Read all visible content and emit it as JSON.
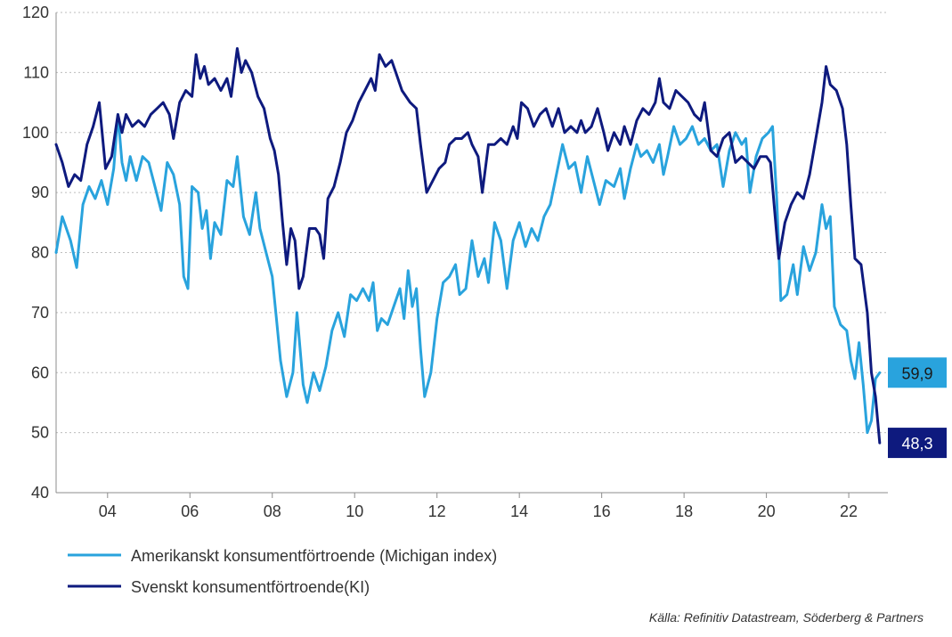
{
  "chart_data": {
    "type": "line",
    "title": "",
    "xlabel": "",
    "ylabel": "",
    "xlim": [
      2002.75,
      2022.95
    ],
    "ylim": [
      40,
      120
    ],
    "yticks": [
      "40",
      "50",
      "60",
      "70",
      "80",
      "90",
      "100",
      "110",
      "120"
    ],
    "xticks": [
      {
        "label": "04",
        "x": 2004.0
      },
      {
        "label": "06",
        "x": 2006.0
      },
      {
        "label": "08",
        "x": 2008.0
      },
      {
        "label": "10",
        "x": 2010.0
      },
      {
        "label": "12",
        "x": 2012.0
      },
      {
        "label": "14",
        "x": 2014.0
      },
      {
        "label": "16",
        "x": 2016.0
      },
      {
        "label": "18",
        "x": 2018.0
      },
      {
        "label": "20",
        "x": 2020.0
      },
      {
        "label": "22",
        "x": 2022.0
      }
    ],
    "grid": true,
    "series": [
      {
        "name": "Amerikanskt konsumentförtroende (Michigan index)",
        "color": "#29A3DD",
        "end_label": "59,9",
        "points": [
          [
            2002.75,
            80
          ],
          [
            2002.9,
            86
          ],
          [
            2003.1,
            82
          ],
          [
            2003.25,
            77.5
          ],
          [
            2003.4,
            88
          ],
          [
            2003.55,
            91
          ],
          [
            2003.7,
            89
          ],
          [
            2003.85,
            92
          ],
          [
            2004.0,
            88
          ],
          [
            2004.15,
            94
          ],
          [
            2004.25,
            103
          ],
          [
            2004.35,
            95
          ],
          [
            2004.45,
            92
          ],
          [
            2004.55,
            96
          ],
          [
            2004.7,
            92
          ],
          [
            2004.85,
            96
          ],
          [
            2005.0,
            95
          ],
          [
            2005.15,
            91
          ],
          [
            2005.3,
            87
          ],
          [
            2005.45,
            95
          ],
          [
            2005.6,
            93
          ],
          [
            2005.75,
            88
          ],
          [
            2005.85,
            76
          ],
          [
            2005.95,
            74
          ],
          [
            2006.05,
            91
          ],
          [
            2006.2,
            90
          ],
          [
            2006.3,
            84
          ],
          [
            2006.4,
            87
          ],
          [
            2006.5,
            79
          ],
          [
            2006.6,
            85
          ],
          [
            2006.75,
            83
          ],
          [
            2006.9,
            92
          ],
          [
            2007.05,
            91
          ],
          [
            2007.15,
            96
          ],
          [
            2007.3,
            86
          ],
          [
            2007.45,
            83
          ],
          [
            2007.6,
            90
          ],
          [
            2007.7,
            84
          ],
          [
            2007.85,
            80
          ],
          [
            2008.0,
            76
          ],
          [
            2008.1,
            69
          ],
          [
            2008.2,
            62
          ],
          [
            2008.35,
            56
          ],
          [
            2008.5,
            60
          ],
          [
            2008.6,
            70
          ],
          [
            2008.75,
            58
          ],
          [
            2008.85,
            55
          ],
          [
            2009.0,
            60
          ],
          [
            2009.15,
            57
          ],
          [
            2009.3,
            61
          ],
          [
            2009.45,
            67
          ],
          [
            2009.6,
            70
          ],
          [
            2009.75,
            66
          ],
          [
            2009.9,
            73
          ],
          [
            2010.05,
            72
          ],
          [
            2010.2,
            74
          ],
          [
            2010.35,
            72
          ],
          [
            2010.45,
            75
          ],
          [
            2010.55,
            67
          ],
          [
            2010.65,
            69
          ],
          [
            2010.8,
            68
          ],
          [
            2010.95,
            71
          ],
          [
            2011.1,
            74
          ],
          [
            2011.2,
            69
          ],
          [
            2011.3,
            77
          ],
          [
            2011.4,
            71
          ],
          [
            2011.5,
            74
          ],
          [
            2011.6,
            64
          ],
          [
            2011.7,
            56
          ],
          [
            2011.85,
            60
          ],
          [
            2012.0,
            69
          ],
          [
            2012.15,
            75
          ],
          [
            2012.3,
            76
          ],
          [
            2012.45,
            78
          ],
          [
            2012.55,
            73
          ],
          [
            2012.7,
            74
          ],
          [
            2012.85,
            82
          ],
          [
            2013.0,
            76
          ],
          [
            2013.15,
            79
          ],
          [
            2013.25,
            75
          ],
          [
            2013.4,
            85
          ],
          [
            2013.55,
            82
          ],
          [
            2013.7,
            74
          ],
          [
            2013.85,
            82
          ],
          [
            2014.0,
            85
          ],
          [
            2014.15,
            81
          ],
          [
            2014.3,
            84
          ],
          [
            2014.45,
            82
          ],
          [
            2014.6,
            86
          ],
          [
            2014.75,
            88
          ],
          [
            2014.9,
            93
          ],
          [
            2015.05,
            98
          ],
          [
            2015.2,
            94
          ],
          [
            2015.35,
            95
          ],
          [
            2015.5,
            90
          ],
          [
            2015.65,
            96
          ],
          [
            2015.8,
            92
          ],
          [
            2015.95,
            88
          ],
          [
            2016.1,
            92
          ],
          [
            2016.3,
            91
          ],
          [
            2016.45,
            94
          ],
          [
            2016.55,
            89
          ],
          [
            2016.7,
            94
          ],
          [
            2016.85,
            98
          ],
          [
            2016.95,
            96
          ],
          [
            2017.1,
            97
          ],
          [
            2017.25,
            95
          ],
          [
            2017.4,
            98
          ],
          [
            2017.5,
            93
          ],
          [
            2017.6,
            96
          ],
          [
            2017.75,
            101
          ],
          [
            2017.9,
            98
          ],
          [
            2018.05,
            99
          ],
          [
            2018.2,
            101
          ],
          [
            2018.35,
            98
          ],
          [
            2018.5,
            99
          ],
          [
            2018.65,
            97
          ],
          [
            2018.8,
            98
          ],
          [
            2018.95,
            91
          ],
          [
            2019.1,
            97
          ],
          [
            2019.25,
            100
          ],
          [
            2019.4,
            98
          ],
          [
            2019.5,
            99
          ],
          [
            2019.6,
            90
          ],
          [
            2019.75,
            96
          ],
          [
            2019.9,
            99
          ],
          [
            2020.05,
            100
          ],
          [
            2020.15,
            101
          ],
          [
            2020.25,
            89
          ],
          [
            2020.35,
            72
          ],
          [
            2020.5,
            73
          ],
          [
            2020.65,
            78
          ],
          [
            2020.75,
            73
          ],
          [
            2020.9,
            81
          ],
          [
            2021.05,
            77
          ],
          [
            2021.2,
            80
          ],
          [
            2021.35,
            88
          ],
          [
            2021.45,
            84
          ],
          [
            2021.55,
            86
          ],
          [
            2021.65,
            71
          ],
          [
            2021.8,
            68
          ],
          [
            2021.95,
            67
          ],
          [
            2022.05,
            62
          ],
          [
            2022.15,
            59
          ],
          [
            2022.25,
            65
          ],
          [
            2022.35,
            58
          ],
          [
            2022.45,
            50
          ],
          [
            2022.55,
            52
          ],
          [
            2022.65,
            59
          ],
          [
            2022.75,
            60
          ]
        ]
      },
      {
        "name": "Svenskt konsumentförtroende(KI)",
        "color": "#0E1A7E",
        "end_label": "48,3",
        "points": [
          [
            2002.75,
            98
          ],
          [
            2002.9,
            95
          ],
          [
            2003.05,
            91
          ],
          [
            2003.2,
            93
          ],
          [
            2003.35,
            92
          ],
          [
            2003.5,
            98
          ],
          [
            2003.65,
            101
          ],
          [
            2003.8,
            105
          ],
          [
            2003.95,
            94
          ],
          [
            2004.1,
            96
          ],
          [
            2004.25,
            103
          ],
          [
            2004.35,
            100
          ],
          [
            2004.45,
            103
          ],
          [
            2004.6,
            101
          ],
          [
            2004.75,
            102
          ],
          [
            2004.9,
            101
          ],
          [
            2005.05,
            103
          ],
          [
            2005.2,
            104
          ],
          [
            2005.35,
            105
          ],
          [
            2005.5,
            103
          ],
          [
            2005.6,
            99
          ],
          [
            2005.75,
            105
          ],
          [
            2005.9,
            107
          ],
          [
            2006.05,
            106
          ],
          [
            2006.15,
            113
          ],
          [
            2006.25,
            109
          ],
          [
            2006.35,
            111
          ],
          [
            2006.45,
            108
          ],
          [
            2006.6,
            109
          ],
          [
            2006.75,
            107
          ],
          [
            2006.9,
            109
          ],
          [
            2007.0,
            106
          ],
          [
            2007.15,
            114
          ],
          [
            2007.25,
            110
          ],
          [
            2007.35,
            112
          ],
          [
            2007.5,
            110
          ],
          [
            2007.65,
            106
          ],
          [
            2007.8,
            104
          ],
          [
            2007.95,
            99
          ],
          [
            2008.05,
            97
          ],
          [
            2008.15,
            93
          ],
          [
            2008.25,
            85
          ],
          [
            2008.35,
            78
          ],
          [
            2008.45,
            84
          ],
          [
            2008.55,
            82
          ],
          [
            2008.65,
            74
          ],
          [
            2008.75,
            76
          ],
          [
            2008.9,
            84
          ],
          [
            2009.05,
            84
          ],
          [
            2009.15,
            83
          ],
          [
            2009.25,
            79
          ],
          [
            2009.35,
            89
          ],
          [
            2009.5,
            91
          ],
          [
            2009.65,
            95
          ],
          [
            2009.8,
            100
          ],
          [
            2009.95,
            102
          ],
          [
            2010.1,
            105
          ],
          [
            2010.25,
            107
          ],
          [
            2010.4,
            109
          ],
          [
            2010.5,
            107
          ],
          [
            2010.6,
            113
          ],
          [
            2010.75,
            111
          ],
          [
            2010.9,
            112
          ],
          [
            2011.0,
            110
          ],
          [
            2011.15,
            107
          ],
          [
            2011.35,
            105
          ],
          [
            2011.5,
            104
          ],
          [
            2011.6,
            98
          ],
          [
            2011.75,
            90
          ],
          [
            2011.9,
            92
          ],
          [
            2012.05,
            94
          ],
          [
            2012.2,
            95
          ],
          [
            2012.3,
            98
          ],
          [
            2012.45,
            99
          ],
          [
            2012.6,
            99
          ],
          [
            2012.75,
            100
          ],
          [
            2012.85,
            98
          ],
          [
            2013.0,
            96
          ],
          [
            2013.1,
            90
          ],
          [
            2013.25,
            98
          ],
          [
            2013.4,
            98
          ],
          [
            2013.55,
            99
          ],
          [
            2013.7,
            98
          ],
          [
            2013.85,
            101
          ],
          [
            2013.95,
            99
          ],
          [
            2014.05,
            105
          ],
          [
            2014.2,
            104
          ],
          [
            2014.35,
            101
          ],
          [
            2014.5,
            103
          ],
          [
            2014.65,
            104
          ],
          [
            2014.8,
            101
          ],
          [
            2014.95,
            104
          ],
          [
            2015.1,
            100
          ],
          [
            2015.25,
            101
          ],
          [
            2015.4,
            100
          ],
          [
            2015.5,
            102
          ],
          [
            2015.6,
            100
          ],
          [
            2015.75,
            101
          ],
          [
            2015.9,
            104
          ],
          [
            2016.05,
            100
          ],
          [
            2016.15,
            97
          ],
          [
            2016.3,
            100
          ],
          [
            2016.45,
            98
          ],
          [
            2016.55,
            101
          ],
          [
            2016.7,
            98
          ],
          [
            2016.85,
            102
          ],
          [
            2017.0,
            104
          ],
          [
            2017.15,
            103
          ],
          [
            2017.3,
            105
          ],
          [
            2017.4,
            109
          ],
          [
            2017.5,
            105
          ],
          [
            2017.65,
            104
          ],
          [
            2017.8,
            107
          ],
          [
            2017.95,
            106
          ],
          [
            2018.1,
            105
          ],
          [
            2018.25,
            103
          ],
          [
            2018.4,
            102
          ],
          [
            2018.5,
            105
          ],
          [
            2018.65,
            97
          ],
          [
            2018.8,
            96
          ],
          [
            2018.95,
            99
          ],
          [
            2019.1,
            100
          ],
          [
            2019.25,
            95
          ],
          [
            2019.4,
            96
          ],
          [
            2019.55,
            95
          ],
          [
            2019.7,
            94
          ],
          [
            2019.85,
            96
          ],
          [
            2020.0,
            96
          ],
          [
            2020.1,
            95
          ],
          [
            2020.2,
            87
          ],
          [
            2020.3,
            79
          ],
          [
            2020.45,
            85
          ],
          [
            2020.6,
            88
          ],
          [
            2020.75,
            90
          ],
          [
            2020.9,
            89
          ],
          [
            2021.05,
            93
          ],
          [
            2021.2,
            99
          ],
          [
            2021.35,
            105
          ],
          [
            2021.45,
            111
          ],
          [
            2021.55,
            108
          ],
          [
            2021.7,
            107
          ],
          [
            2021.85,
            104
          ],
          [
            2021.95,
            98
          ],
          [
            2022.05,
            88
          ],
          [
            2022.15,
            79
          ],
          [
            2022.3,
            78
          ],
          [
            2022.45,
            70
          ],
          [
            2022.55,
            60
          ],
          [
            2022.65,
            56
          ],
          [
            2022.75,
            48.3
          ]
        ]
      }
    ],
    "source": "Källa: Refinitiv Datastream, Söderberg & Partners"
  }
}
